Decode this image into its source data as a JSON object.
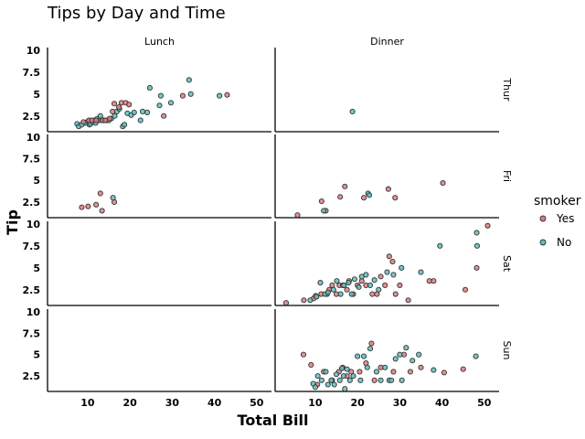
{
  "chart_data": {
    "type": "scatter",
    "title": "Tips by Day and Time",
    "xlabel": "Total Bill",
    "ylabel": "Tip",
    "xlim": [
      0.5,
      53.5
    ],
    "ylim": [
      0.7,
      10.3
    ],
    "xticks": [
      10,
      20,
      30,
      40,
      50
    ],
    "yticks": [
      2.5,
      5,
      7.5,
      10
    ],
    "xtick_labels": [
      "10",
      "20",
      "30",
      "40",
      "50"
    ],
    "ytick_labels": [
      "2.5",
      "5",
      "7.5",
      "10"
    ],
    "columns": [
      "Lunch",
      "Dinner"
    ],
    "rows": [
      "Thur",
      "Fri",
      "Sat",
      "Sun"
    ],
    "legend": {
      "title": "smoker",
      "placement": "right",
      "entries": [
        {
          "label": "Yes",
          "color": "#e07b7b"
        },
        {
          "label": "No",
          "color": "#5bc0c0"
        }
      ]
    },
    "marker_edge_color": "#333333",
    "panels": [
      {
        "row": "Thur",
        "col": "Lunch",
        "points": [
          {
            "x": 7.5,
            "y": 1.6,
            "smoker": "No"
          },
          {
            "x": 7.9,
            "y": 1.3,
            "smoker": "No"
          },
          {
            "x": 8.6,
            "y": 1.5,
            "smoker": "No"
          },
          {
            "x": 9.5,
            "y": 1.7,
            "smoker": "No"
          },
          {
            "x": 10.1,
            "y": 1.9,
            "smoker": "No"
          },
          {
            "x": 10.4,
            "y": 1.5,
            "smoker": "No"
          },
          {
            "x": 10.7,
            "y": 1.6,
            "smoker": "No"
          },
          {
            "x": 11.2,
            "y": 1.8,
            "smoker": "No"
          },
          {
            "x": 11.6,
            "y": 2.0,
            "smoker": "No"
          },
          {
            "x": 11.9,
            "y": 1.7,
            "smoker": "No"
          },
          {
            "x": 12.3,
            "y": 2.2,
            "smoker": "No"
          },
          {
            "x": 12.7,
            "y": 2.0,
            "smoker": "No"
          },
          {
            "x": 13.0,
            "y": 2.5,
            "smoker": "No"
          },
          {
            "x": 13.4,
            "y": 2.0,
            "smoker": "No"
          },
          {
            "x": 13.8,
            "y": 2.0,
            "smoker": "No"
          },
          {
            "x": 14.5,
            "y": 2.0,
            "smoker": "No"
          },
          {
            "x": 15.0,
            "y": 2.0,
            "smoker": "No"
          },
          {
            "x": 15.6,
            "y": 2.2,
            "smoker": "No"
          },
          {
            "x": 16.4,
            "y": 2.5,
            "smoker": "No"
          },
          {
            "x": 16.9,
            "y": 3.0,
            "smoker": "No"
          },
          {
            "x": 17.5,
            "y": 3.3,
            "smoker": "No"
          },
          {
            "x": 18.3,
            "y": 1.3,
            "smoker": "No"
          },
          {
            "x": 18.7,
            "y": 1.5,
            "smoker": "No"
          },
          {
            "x": 19.4,
            "y": 2.8,
            "smoker": "No"
          },
          {
            "x": 20.3,
            "y": 2.6,
            "smoker": "No"
          },
          {
            "x": 21.0,
            "y": 2.9,
            "smoker": "No"
          },
          {
            "x": 22.5,
            "y": 2.0,
            "smoker": "No"
          },
          {
            "x": 23.0,
            "y": 3.0,
            "smoker": "No"
          },
          {
            "x": 24.1,
            "y": 2.9,
            "smoker": "No"
          },
          {
            "x": 24.7,
            "y": 5.7,
            "smoker": "No"
          },
          {
            "x": 27.0,
            "y": 3.7,
            "smoker": "No"
          },
          {
            "x": 27.3,
            "y": 4.8,
            "smoker": "No"
          },
          {
            "x": 29.7,
            "y": 4.0,
            "smoker": "No"
          },
          {
            "x": 34.0,
            "y": 6.6,
            "smoker": "No"
          },
          {
            "x": 34.4,
            "y": 5.0,
            "smoker": "No"
          },
          {
            "x": 41.2,
            "y": 4.8,
            "smoker": "No"
          },
          {
            "x": 9.0,
            "y": 1.8,
            "smoker": "Yes"
          },
          {
            "x": 10.3,
            "y": 2.0,
            "smoker": "Yes"
          },
          {
            "x": 11.0,
            "y": 2.0,
            "smoker": "Yes"
          },
          {
            "x": 12.0,
            "y": 2.0,
            "smoker": "Yes"
          },
          {
            "x": 13.5,
            "y": 2.0,
            "smoker": "Yes"
          },
          {
            "x": 14.2,
            "y": 2.0,
            "smoker": "Yes"
          },
          {
            "x": 15.2,
            "y": 2.2,
            "smoker": "Yes"
          },
          {
            "x": 15.9,
            "y": 3.0,
            "smoker": "Yes"
          },
          {
            "x": 16.3,
            "y": 3.9,
            "smoker": "Yes"
          },
          {
            "x": 17.4,
            "y": 3.5,
            "smoker": "Yes"
          },
          {
            "x": 18.0,
            "y": 4.0,
            "smoker": "Yes"
          },
          {
            "x": 19.0,
            "y": 4.0,
            "smoker": "Yes"
          },
          {
            "x": 19.8,
            "y": 3.8,
            "smoker": "Yes"
          },
          {
            "x": 28.0,
            "y": 2.5,
            "smoker": "Yes"
          },
          {
            "x": 32.5,
            "y": 4.8,
            "smoker": "Yes"
          },
          {
            "x": 43.0,
            "y": 4.9,
            "smoker": "Yes"
          }
        ]
      },
      {
        "row": "Thur",
        "col": "Dinner",
        "points": [
          {
            "x": 18.8,
            "y": 3.0,
            "smoker": "No"
          }
        ]
      },
      {
        "row": "Fri",
        "col": "Lunch",
        "points": [
          {
            "x": 8.6,
            "y": 1.9,
            "smoker": "Yes"
          },
          {
            "x": 10.1,
            "y": 2.0,
            "smoker": "Yes"
          },
          {
            "x": 12.0,
            "y": 2.2,
            "smoker": "Yes"
          },
          {
            "x": 13.0,
            "y": 3.5,
            "smoker": "Yes"
          },
          {
            "x": 13.4,
            "y": 1.5,
            "smoker": "Yes"
          },
          {
            "x": 16.3,
            "y": 2.5,
            "smoker": "Yes"
          },
          {
            "x": 16.0,
            "y": 3.0,
            "smoker": "No"
          }
        ]
      },
      {
        "row": "Fri",
        "col": "Dinner",
        "points": [
          {
            "x": 5.8,
            "y": 1.0,
            "smoker": "Yes"
          },
          {
            "x": 11.5,
            "y": 2.6,
            "smoker": "Yes"
          },
          {
            "x": 12.5,
            "y": 1.5,
            "smoker": "Yes"
          },
          {
            "x": 15.9,
            "y": 3.1,
            "smoker": "Yes"
          },
          {
            "x": 17.0,
            "y": 4.3,
            "smoker": "Yes"
          },
          {
            "x": 21.5,
            "y": 3.0,
            "smoker": "Yes"
          },
          {
            "x": 27.3,
            "y": 4.0,
            "smoker": "Yes"
          },
          {
            "x": 28.9,
            "y": 3.0,
            "smoker": "Yes"
          },
          {
            "x": 40.2,
            "y": 4.7,
            "smoker": "Yes"
          },
          {
            "x": 12.0,
            "y": 1.5,
            "smoker": "No"
          },
          {
            "x": 22.5,
            "y": 3.5,
            "smoker": "No"
          },
          {
            "x": 22.8,
            "y": 3.3,
            "smoker": "No"
          }
        ]
      },
      {
        "row": "Sat",
        "col": "Dinner",
        "points": [
          {
            "x": 3.1,
            "y": 1.0,
            "smoker": "Yes"
          },
          {
            "x": 7.3,
            "y": 1.3,
            "smoker": "Yes"
          },
          {
            "x": 9.6,
            "y": 1.5,
            "smoker": "Yes"
          },
          {
            "x": 10.1,
            "y": 1.8,
            "smoker": "Yes"
          },
          {
            "x": 11.4,
            "y": 2.0,
            "smoker": "Yes"
          },
          {
            "x": 12.8,
            "y": 2.0,
            "smoker": "Yes"
          },
          {
            "x": 13.3,
            "y": 2.5,
            "smoker": "Yes"
          },
          {
            "x": 14.0,
            "y": 3.0,
            "smoker": "Yes"
          },
          {
            "x": 15.0,
            "y": 2.0,
            "smoker": "Yes"
          },
          {
            "x": 15.7,
            "y": 3.0,
            "smoker": "Yes"
          },
          {
            "x": 16.5,
            "y": 3.0,
            "smoker": "Yes"
          },
          {
            "x": 17.5,
            "y": 2.5,
            "smoker": "Yes"
          },
          {
            "x": 18.0,
            "y": 3.5,
            "smoker": "Yes"
          },
          {
            "x": 19.0,
            "y": 2.0,
            "smoker": "Yes"
          },
          {
            "x": 20.0,
            "y": 3.0,
            "smoker": "Yes"
          },
          {
            "x": 21.0,
            "y": 3.5,
            "smoker": "Yes"
          },
          {
            "x": 22.0,
            "y": 3.0,
            "smoker": "Yes"
          },
          {
            "x": 23.5,
            "y": 2.0,
            "smoker": "Yes"
          },
          {
            "x": 24.6,
            "y": 2.0,
            "smoker": "Yes"
          },
          {
            "x": 25.5,
            "y": 4.0,
            "smoker": "Yes"
          },
          {
            "x": 26.5,
            "y": 3.0,
            "smoker": "Yes"
          },
          {
            "x": 27.5,
            "y": 6.3,
            "smoker": "Yes"
          },
          {
            "x": 28.3,
            "y": 5.7,
            "smoker": "Yes"
          },
          {
            "x": 29.0,
            "y": 2.0,
            "smoker": "Yes"
          },
          {
            "x": 30.0,
            "y": 3.0,
            "smoker": "Yes"
          },
          {
            "x": 32.0,
            "y": 1.3,
            "smoker": "Yes"
          },
          {
            "x": 37.0,
            "y": 3.5,
            "smoker": "Yes"
          },
          {
            "x": 38.0,
            "y": 3.5,
            "smoker": "Yes"
          },
          {
            "x": 45.5,
            "y": 2.5,
            "smoker": "Yes"
          },
          {
            "x": 48.2,
            "y": 5.0,
            "smoker": "Yes"
          },
          {
            "x": 50.8,
            "y": 9.8,
            "smoker": "Yes"
          },
          {
            "x": 8.8,
            "y": 1.3,
            "smoker": "No"
          },
          {
            "x": 10.3,
            "y": 1.7,
            "smoker": "No"
          },
          {
            "x": 11.2,
            "y": 3.3,
            "smoker": "No"
          },
          {
            "x": 12.3,
            "y": 2.0,
            "smoker": "No"
          },
          {
            "x": 13.0,
            "y": 2.2,
            "smoker": "No"
          },
          {
            "x": 14.3,
            "y": 2.5,
            "smoker": "No"
          },
          {
            "x": 15.1,
            "y": 3.5,
            "smoker": "No"
          },
          {
            "x": 16.0,
            "y": 2.0,
            "smoker": "No"
          },
          {
            "x": 16.8,
            "y": 3.0,
            "smoker": "No"
          },
          {
            "x": 17.9,
            "y": 3.3,
            "smoker": "No"
          },
          {
            "x": 18.6,
            "y": 2.0,
            "smoker": "No"
          },
          {
            "x": 19.3,
            "y": 3.7,
            "smoker": "No"
          },
          {
            "x": 20.3,
            "y": 2.8,
            "smoker": "No"
          },
          {
            "x": 21.0,
            "y": 4.0,
            "smoker": "No"
          },
          {
            "x": 22.0,
            "y": 4.2,
            "smoker": "No"
          },
          {
            "x": 23.0,
            "y": 3.0,
            "smoker": "No"
          },
          {
            "x": 24.0,
            "y": 3.6,
            "smoker": "No"
          },
          {
            "x": 25.0,
            "y": 2.5,
            "smoker": "No"
          },
          {
            "x": 27.0,
            "y": 4.5,
            "smoker": "No"
          },
          {
            "x": 28.5,
            "y": 4.2,
            "smoker": "No"
          },
          {
            "x": 30.4,
            "y": 5.0,
            "smoker": "No"
          },
          {
            "x": 35.0,
            "y": 4.5,
            "smoker": "No"
          },
          {
            "x": 39.5,
            "y": 7.5,
            "smoker": "No"
          },
          {
            "x": 48.3,
            "y": 7.5,
            "smoker": "No"
          },
          {
            "x": 48.2,
            "y": 9.0,
            "smoker": "No"
          }
        ]
      },
      {
        "row": "Sun",
        "col": "Dinner",
        "points": [
          {
            "x": 7.2,
            "y": 5.0,
            "smoker": "Yes"
          },
          {
            "x": 9.0,
            "y": 3.8,
            "smoker": "Yes"
          },
          {
            "x": 10.5,
            "y": 1.5,
            "smoker": "Yes"
          },
          {
            "x": 12.0,
            "y": 3.0,
            "smoker": "Yes"
          },
          {
            "x": 14.0,
            "y": 2.0,
            "smoker": "Yes"
          },
          {
            "x": 15.6,
            "y": 3.0,
            "smoker": "Yes"
          },
          {
            "x": 16.5,
            "y": 3.5,
            "smoker": "Yes"
          },
          {
            "x": 17.5,
            "y": 2.5,
            "smoker": "Yes"
          },
          {
            "x": 18.5,
            "y": 3.0,
            "smoker": "Yes"
          },
          {
            "x": 20.5,
            "y": 3.0,
            "smoker": "Yes"
          },
          {
            "x": 22.0,
            "y": 4.0,
            "smoker": "Yes"
          },
          {
            "x": 23.3,
            "y": 6.3,
            "smoker": "Yes"
          },
          {
            "x": 24.0,
            "y": 2.0,
            "smoker": "Yes"
          },
          {
            "x": 25.5,
            "y": 3.5,
            "smoker": "Yes"
          },
          {
            "x": 28.5,
            "y": 3.0,
            "smoker": "Yes"
          },
          {
            "x": 31.0,
            "y": 5.0,
            "smoker": "Yes"
          },
          {
            "x": 32.5,
            "y": 3.0,
            "smoker": "Yes"
          },
          {
            "x": 35.0,
            "y": 3.5,
            "smoker": "Yes"
          },
          {
            "x": 40.5,
            "y": 2.9,
            "smoker": "Yes"
          },
          {
            "x": 45.0,
            "y": 3.3,
            "smoker": "Yes"
          },
          {
            "x": 9.5,
            "y": 1.6,
            "smoker": "No"
          },
          {
            "x": 10.0,
            "y": 1.2,
            "smoker": "No"
          },
          {
            "x": 10.6,
            "y": 2.5,
            "smoker": "No"
          },
          {
            "x": 11.5,
            "y": 2.0,
            "smoker": "No"
          },
          {
            "x": 12.5,
            "y": 3.0,
            "smoker": "No"
          },
          {
            "x": 13.0,
            "y": 1.5,
            "smoker": "No"
          },
          {
            "x": 13.8,
            "y": 2.0,
            "smoker": "No"
          },
          {
            "x": 14.5,
            "y": 1.5,
            "smoker": "No"
          },
          {
            "x": 15.0,
            "y": 2.7,
            "smoker": "No"
          },
          {
            "x": 15.8,
            "y": 2.0,
            "smoker": "No"
          },
          {
            "x": 16.3,
            "y": 3.4,
            "smoker": "No"
          },
          {
            "x": 16.7,
            "y": 2.5,
            "smoker": "No"
          },
          {
            "x": 17.0,
            "y": 1.0,
            "smoker": "No"
          },
          {
            "x": 17.5,
            "y": 3.3,
            "smoker": "No"
          },
          {
            "x": 18.2,
            "y": 2.0,
            "smoker": "No"
          },
          {
            "x": 19.0,
            "y": 2.5,
            "smoker": "No"
          },
          {
            "x": 20.0,
            "y": 4.8,
            "smoker": "No"
          },
          {
            "x": 20.7,
            "y": 2.0,
            "smoker": "No"
          },
          {
            "x": 21.5,
            "y": 4.8,
            "smoker": "No"
          },
          {
            "x": 22.3,
            "y": 3.5,
            "smoker": "No"
          },
          {
            "x": 23.0,
            "y": 5.7,
            "smoker": "No"
          },
          {
            "x": 24.5,
            "y": 3.0,
            "smoker": "No"
          },
          {
            "x": 25.5,
            "y": 2.0,
            "smoker": "No"
          },
          {
            "x": 26.5,
            "y": 3.5,
            "smoker": "No"
          },
          {
            "x": 27.5,
            "y": 2.0,
            "smoker": "No"
          },
          {
            "x": 29.0,
            "y": 4.5,
            "smoker": "No"
          },
          {
            "x": 30.0,
            "y": 5.0,
            "smoker": "No"
          },
          {
            "x": 31.5,
            "y": 5.8,
            "smoker": "No"
          },
          {
            "x": 33.0,
            "y": 4.3,
            "smoker": "No"
          },
          {
            "x": 34.5,
            "y": 5.0,
            "smoker": "No"
          },
          {
            "x": 38.0,
            "y": 3.2,
            "smoker": "No"
          },
          {
            "x": 48.0,
            "y": 4.8,
            "smoker": "No"
          },
          {
            "x": 28.0,
            "y": 2.0,
            "smoker": "No"
          },
          {
            "x": 30.5,
            "y": 2.0,
            "smoker": "No"
          }
        ]
      }
    ]
  }
}
